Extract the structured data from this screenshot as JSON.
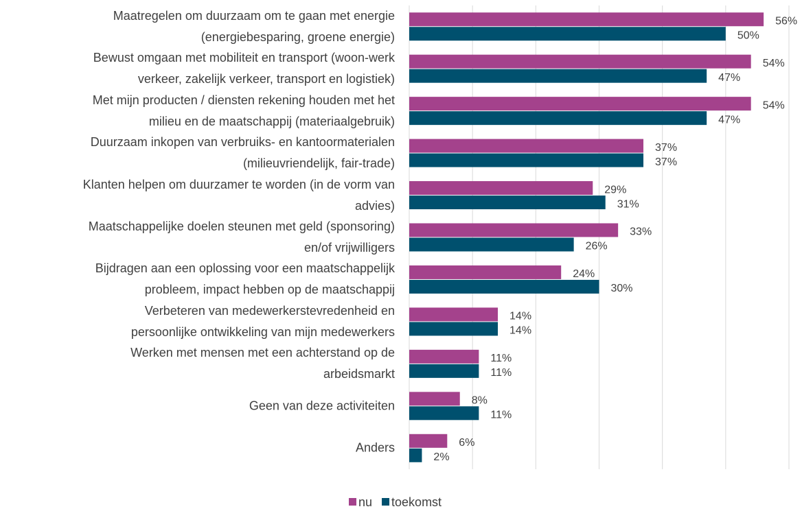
{
  "chart_data": {
    "type": "barh",
    "categories": [
      "Maatregelen om duurzaam om te gaan met energie\n(energiebesparing, groene energie)",
      "Bewust omgaan met mobiliteit en transport (woon-werk\nverkeer, zakelijk verkeer, transport en logistiek)",
      "Met mijn producten / diensten rekening houden met het\nmilieu en de maatschappij (materiaalgebruik)",
      "Duurzaam inkopen van verbruiks- en kantoormaterialen\n(milieuvriendelijk, fair-trade)",
      "Klanten helpen om duurzamer te worden (in de vorm van\nadvies)",
      "Maatschappelijke doelen steunen met geld (sponsoring)\nen/of vrijwilligers",
      "Bijdragen aan een oplossing voor een maatschappelijk\nprobleem, impact hebben op de maatschappij",
      "Verbeteren van medewerkerstevredenheid en\npersoonlijke ontwikkeling van mijn medewerkers",
      "Werken met mensen met een achterstand op de\narbeidsmarkt",
      "Geen van deze activiteiten",
      "Anders"
    ],
    "series": [
      {
        "name": "nu",
        "color": "#a4428c",
        "values": [
          56,
          54,
          54,
          37,
          29,
          33,
          24,
          14,
          11,
          8,
          6
        ],
        "value_labels": [
          "56%",
          "54%",
          "54%",
          "37%",
          "29%",
          "33%",
          "24%",
          "14%",
          "11%",
          "8%",
          "6%"
        ]
      },
      {
        "name": "toekomst",
        "color": "#00506e",
        "values": [
          50,
          47,
          47,
          37,
          31,
          26,
          30,
          14,
          11,
          11,
          2
        ],
        "value_labels": [
          "50%",
          "47%",
          "47%",
          "37%",
          "31%",
          "26%",
          "30%",
          "14%",
          "11%",
          "11%",
          "2%"
        ]
      }
    ],
    "xlim": [
      0,
      60
    ],
    "xticks": [
      0,
      10,
      20,
      30,
      40,
      50,
      60
    ],
    "grid": true,
    "legend": "bottom"
  }
}
